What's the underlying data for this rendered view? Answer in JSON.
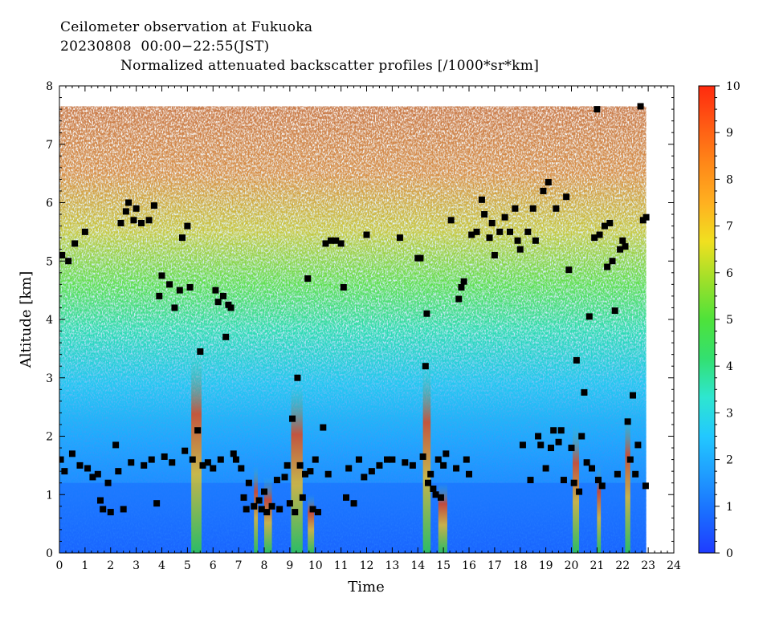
{
  "header": {
    "line1": "Ceilometer observation at Fukuoka",
    "line2": "20230808  00:00−22:55(JST)",
    "line3": "Normalized attenuated backscatter profiles [/1000*sr*km]"
  },
  "chart_data": {
    "type": "heatmap",
    "xlabel": "Time",
    "ylabel": "Altitude [km]",
    "xlim": [
      0,
      24
    ],
    "ylim": [
      0,
      8
    ],
    "x_ticks": [
      "0",
      "1",
      "2",
      "3",
      "4",
      "5",
      "6",
      "7",
      "8",
      "9",
      "10",
      "11",
      "12",
      "13",
      "14",
      "15",
      "16",
      "17",
      "18",
      "19",
      "20",
      "21",
      "22",
      "23",
      "24"
    ],
    "y_ticks": [
      "0",
      "1",
      "2",
      "3",
      "4",
      "5",
      "6",
      "7",
      "8"
    ],
    "data_range_hours": [
      0,
      22.92
    ],
    "data_top_km": 7.65,
    "colorbar": {
      "range": [
        0,
        10
      ],
      "ticks": [
        "0",
        "1",
        "2",
        "3",
        "4",
        "5",
        "6",
        "7",
        "8",
        "9",
        "10"
      ],
      "colors": [
        "#1f3cff",
        "#1a6cff",
        "#1f9cff",
        "#22c8ff",
        "#2ee6d0",
        "#33e070",
        "#4ee23a",
        "#9ee02a",
        "#f0e020",
        "#ffb020",
        "#ff8818",
        "#ff5a14",
        "#ff2a0e"
      ]
    },
    "cloud_base_points": [
      [
        0.05,
        1.6
      ],
      [
        0.1,
        5.1
      ],
      [
        0.2,
        1.4
      ],
      [
        0.35,
        5.0
      ],
      [
        0.5,
        1.7
      ],
      [
        0.6,
        5.3
      ],
      [
        0.8,
        1.5
      ],
      [
        1.0,
        5.5
      ],
      [
        1.1,
        1.45
      ],
      [
        1.3,
        1.3
      ],
      [
        1.5,
        1.35
      ],
      [
        1.6,
        0.9
      ],
      [
        1.7,
        0.75
      ],
      [
        1.9,
        1.2
      ],
      [
        2.0,
        0.7
      ],
      [
        2.2,
        1.85
      ],
      [
        2.3,
        1.4
      ],
      [
        2.4,
        5.65
      ],
      [
        2.5,
        0.75
      ],
      [
        2.6,
        5.85
      ],
      [
        2.7,
        6.0
      ],
      [
        2.8,
        1.55
      ],
      [
        2.9,
        5.7
      ],
      [
        3.0,
        5.9
      ],
      [
        3.2,
        5.65
      ],
      [
        3.3,
        1.5
      ],
      [
        3.5,
        5.7
      ],
      [
        3.6,
        1.6
      ],
      [
        3.7,
        5.95
      ],
      [
        3.8,
        0.85
      ],
      [
        3.9,
        4.4
      ],
      [
        4.0,
        4.75
      ],
      [
        4.1,
        1.65
      ],
      [
        4.3,
        4.6
      ],
      [
        4.4,
        1.55
      ],
      [
        4.5,
        4.2
      ],
      [
        4.7,
        4.5
      ],
      [
        4.8,
        5.4
      ],
      [
        4.9,
        1.75
      ],
      [
        5.0,
        5.6
      ],
      [
        5.1,
        4.55
      ],
      [
        5.2,
        1.6
      ],
      [
        5.4,
        2.1
      ],
      [
        5.5,
        3.45
      ],
      [
        5.6,
        1.5
      ],
      [
        5.8,
        1.55
      ],
      [
        6.0,
        1.45
      ],
      [
        6.1,
        4.5
      ],
      [
        6.2,
        4.3
      ],
      [
        6.3,
        1.6
      ],
      [
        6.4,
        4.4
      ],
      [
        6.5,
        3.7
      ],
      [
        6.6,
        4.25
      ],
      [
        6.7,
        4.2
      ],
      [
        6.8,
        1.7
      ],
      [
        6.9,
        1.6
      ],
      [
        7.1,
        1.45
      ],
      [
        7.2,
        0.95
      ],
      [
        7.3,
        0.75
      ],
      [
        7.4,
        1.2
      ],
      [
        7.6,
        0.8
      ],
      [
        7.8,
        0.9
      ],
      [
        7.9,
        0.75
      ],
      [
        8.0,
        1.05
      ],
      [
        8.1,
        0.7
      ],
      [
        8.3,
        0.8
      ],
      [
        8.5,
        1.25
      ],
      [
        8.6,
        0.75
      ],
      [
        8.8,
        1.3
      ],
      [
        8.9,
        1.5
      ],
      [
        9.0,
        0.85
      ],
      [
        9.1,
        2.3
      ],
      [
        9.2,
        0.7
      ],
      [
        9.3,
        3.0
      ],
      [
        9.4,
        1.5
      ],
      [
        9.5,
        0.95
      ],
      [
        9.6,
        1.35
      ],
      [
        9.7,
        4.7
      ],
      [
        9.8,
        1.4
      ],
      [
        9.9,
        0.75
      ],
      [
        10.0,
        1.6
      ],
      [
        10.1,
        0.7
      ],
      [
        10.3,
        2.15
      ],
      [
        10.4,
        5.3
      ],
      [
        10.5,
        1.35
      ],
      [
        10.6,
        5.35
      ],
      [
        10.8,
        5.35
      ],
      [
        11.0,
        5.3
      ],
      [
        11.1,
        4.55
      ],
      [
        11.2,
        0.95
      ],
      [
        11.3,
        1.45
      ],
      [
        11.5,
        0.85
      ],
      [
        11.7,
        1.6
      ],
      [
        11.9,
        1.3
      ],
      [
        12.0,
        5.45
      ],
      [
        12.2,
        1.4
      ],
      [
        12.5,
        1.5
      ],
      [
        12.8,
        1.6
      ],
      [
        13.0,
        1.6
      ],
      [
        13.3,
        5.4
      ],
      [
        13.5,
        1.55
      ],
      [
        13.8,
        1.5
      ],
      [
        14.0,
        5.05
      ],
      [
        14.1,
        5.05
      ],
      [
        14.2,
        1.65
      ],
      [
        14.3,
        3.2
      ],
      [
        14.35,
        4.1
      ],
      [
        14.4,
        1.2
      ],
      [
        14.5,
        1.35
      ],
      [
        14.6,
        1.1
      ],
      [
        14.7,
        1.0
      ],
      [
        14.8,
        1.6
      ],
      [
        14.9,
        0.95
      ],
      [
        15.0,
        1.5
      ],
      [
        15.1,
        1.7
      ],
      [
        15.3,
        5.7
      ],
      [
        15.5,
        1.45
      ],
      [
        15.6,
        4.35
      ],
      [
        15.7,
        4.55
      ],
      [
        15.8,
        4.65
      ],
      [
        15.9,
        1.6
      ],
      [
        16.0,
        1.35
      ],
      [
        16.1,
        5.45
      ],
      [
        16.3,
        5.5
      ],
      [
        16.5,
        6.05
      ],
      [
        16.6,
        5.8
      ],
      [
        16.8,
        5.4
      ],
      [
        16.9,
        5.65
      ],
      [
        17.0,
        5.1
      ],
      [
        17.2,
        5.5
      ],
      [
        17.4,
        5.75
      ],
      [
        17.6,
        5.5
      ],
      [
        17.8,
        5.9
      ],
      [
        17.9,
        5.35
      ],
      [
        18.0,
        5.2
      ],
      [
        18.1,
        1.85
      ],
      [
        18.3,
        5.5
      ],
      [
        18.4,
        1.25
      ],
      [
        18.5,
        5.9
      ],
      [
        18.6,
        5.35
      ],
      [
        18.7,
        2.0
      ],
      [
        18.8,
        1.85
      ],
      [
        18.9,
        6.2
      ],
      [
        19.0,
        1.45
      ],
      [
        19.1,
        6.35
      ],
      [
        19.2,
        1.8
      ],
      [
        19.3,
        2.1
      ],
      [
        19.4,
        5.9
      ],
      [
        19.5,
        1.9
      ],
      [
        19.6,
        2.1
      ],
      [
        19.7,
        1.25
      ],
      [
        19.8,
        6.1
      ],
      [
        19.9,
        4.85
      ],
      [
        20.0,
        1.8
      ],
      [
        20.1,
        1.2
      ],
      [
        20.2,
        3.3
      ],
      [
        20.3,
        1.05
      ],
      [
        20.4,
        2.0
      ],
      [
        20.5,
        2.75
      ],
      [
        20.6,
        1.55
      ],
      [
        20.7,
        4.05
      ],
      [
        20.8,
        1.45
      ],
      [
        20.9,
        5.4
      ],
      [
        21.0,
        7.6
      ],
      [
        21.05,
        1.25
      ],
      [
        21.1,
        5.45
      ],
      [
        21.2,
        1.15
      ],
      [
        21.3,
        5.6
      ],
      [
        21.4,
        4.9
      ],
      [
        21.5,
        5.65
      ],
      [
        21.6,
        5.0
      ],
      [
        21.7,
        4.15
      ],
      [
        21.8,
        1.35
      ],
      [
        21.9,
        5.2
      ],
      [
        22.0,
        5.35
      ],
      [
        22.1,
        5.25
      ],
      [
        22.2,
        2.25
      ],
      [
        22.3,
        1.6
      ],
      [
        22.4,
        2.7
      ],
      [
        22.5,
        1.35
      ],
      [
        22.6,
        1.85
      ],
      [
        22.7,
        7.65
      ],
      [
        22.8,
        5.7
      ],
      [
        22.9,
        1.15
      ],
      [
        22.92,
        5.75
      ]
    ]
  }
}
